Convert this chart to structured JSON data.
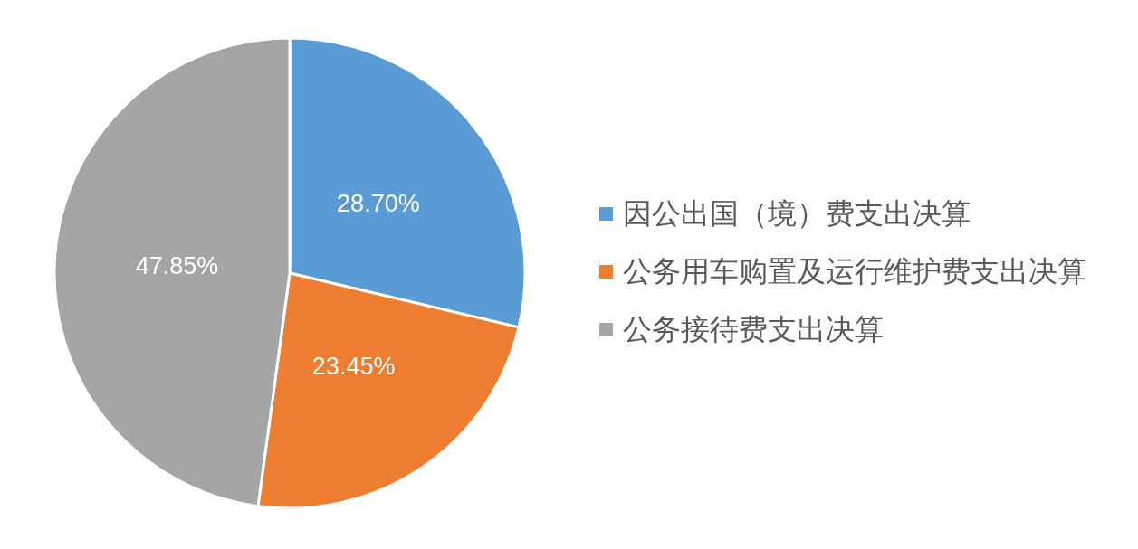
{
  "chart_data": {
    "type": "pie",
    "categories": [
      "因公出国（境）费支出决算",
      "公务用车购置及运行维护费支出决算",
      "公务接待费支出决算"
    ],
    "values": [
      28.7,
      23.45,
      47.85
    ],
    "value_labels": [
      "28.70%",
      "23.45%",
      "47.85%"
    ],
    "colors": [
      "#5b9bd5",
      "#ed7d31",
      "#a5a5a5"
    ],
    "legend": "right"
  }
}
